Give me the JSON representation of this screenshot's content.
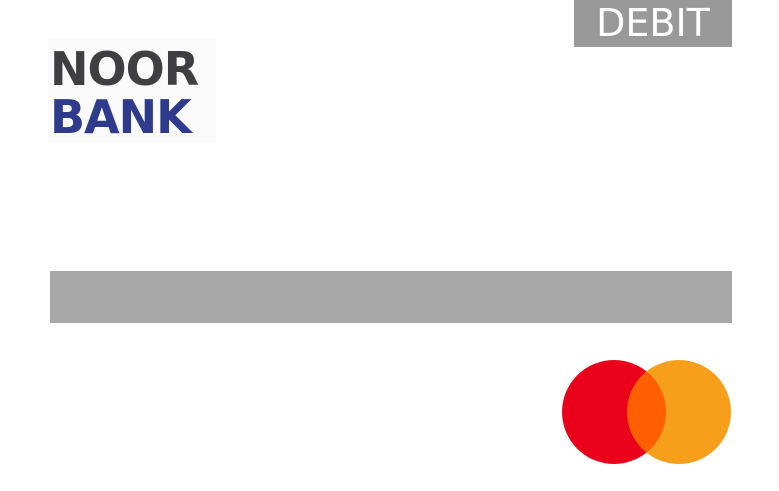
{
  "card": {
    "type_label": "DEBIT",
    "bank_name_line1": "NOOR",
    "bank_name_line2": "BANK",
    "card_number": ""
  },
  "colors": {
    "badge": "#999999",
    "bank_top": "#3f3f41",
    "bank_bottom": "#2e3a8c",
    "number_bar": "#a8a8a8",
    "mc_red": "#eb001b",
    "mc_orange": "#f79e1b",
    "mc_overlap": "#ff5f00"
  },
  "icons": {
    "brand": "mastercard-logo-icon"
  }
}
